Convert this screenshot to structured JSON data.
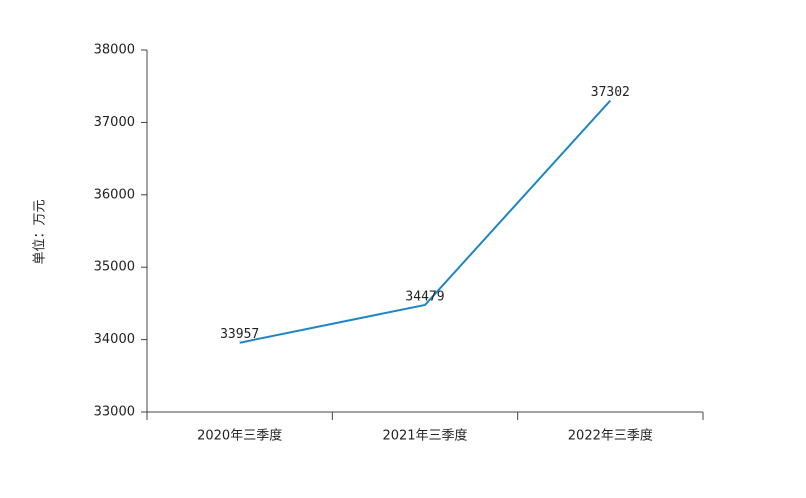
{
  "chart_data": {
    "type": "line",
    "ylabel": "单位：万元",
    "categories": [
      "2020年三季度",
      "2021年三季度",
      "2022年三季度"
    ],
    "values": [
      33957,
      34479,
      37302
    ],
    "color": "#1f86c4",
    "ylim": [
      33000,
      38000
    ],
    "yticks": [
      33000,
      34000,
      35000,
      36000,
      37000,
      38000
    ],
    "grid": false
  }
}
